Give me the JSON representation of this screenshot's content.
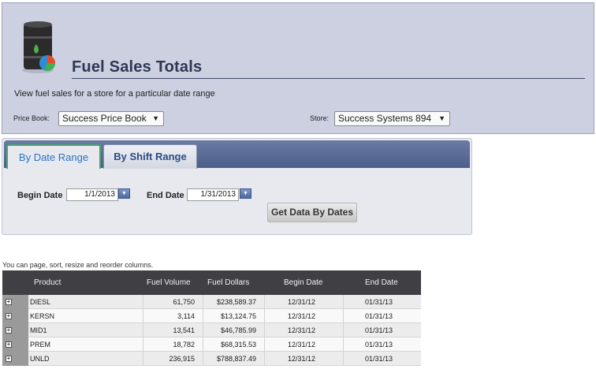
{
  "header": {
    "title": "Fuel Sales Totals",
    "description": "View fuel sales for a store for a particular date range",
    "price_book_label": "Price Book:",
    "price_book_value": "Success Price Book",
    "store_label": "Store:",
    "store_value": "Success Systems 894",
    "icon": "fuel-barrel-icon"
  },
  "tabs": [
    {
      "label": "By Date Range",
      "active": true
    },
    {
      "label": "By Shift Range",
      "active": false
    }
  ],
  "form": {
    "begin_label": "Begin Date",
    "begin_value": "1/1/2013",
    "end_label": "End Date",
    "end_value": "1/31/2013",
    "button_label": "Get Data By Dates"
  },
  "grid": {
    "hint": "You can page, sort, resize and reorder columns.",
    "columns": [
      "Product",
      "Fuel Volume",
      "Fuel Dollars",
      "Begin Date",
      "End Date"
    ],
    "rows": [
      {
        "product": "DIESL",
        "volume": "61,750",
        "dollars": "$238,589.37",
        "begin": "12/31/12",
        "end": "01/31/13"
      },
      {
        "product": "KERSN",
        "volume": "3,114",
        "dollars": "$13,124.75",
        "begin": "12/31/12",
        "end": "01/31/13"
      },
      {
        "product": "MID1",
        "volume": "13,541",
        "dollars": "$46,785.99",
        "begin": "12/31/12",
        "end": "01/31/13"
      },
      {
        "product": "PREM",
        "volume": "18,782",
        "dollars": "$68,315.53",
        "begin": "12/31/12",
        "end": "01/31/13"
      },
      {
        "product": "UNLD",
        "volume": "236,915",
        "dollars": "$788,837.49",
        "begin": "12/31/12",
        "end": "01/31/13"
      }
    ]
  },
  "colors": {
    "header_bg": "#ccd0e0",
    "tab_strip": "#4d5e8a",
    "grid_header": "#3f3f44",
    "active_tab_text": "#2a73c5"
  }
}
